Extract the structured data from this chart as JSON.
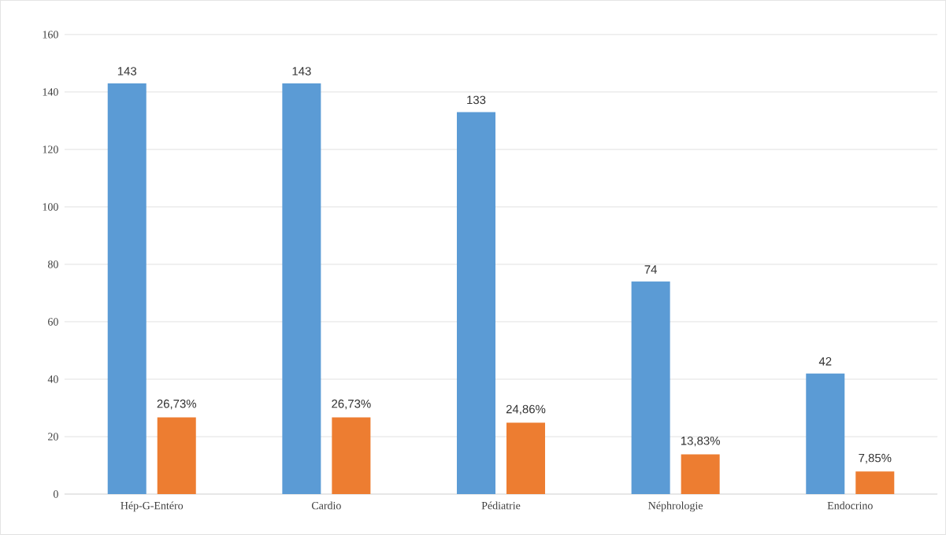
{
  "chart_data": {
    "type": "bar",
    "categories": [
      "Hép-G-Entéro",
      "Cardio",
      "Pédiatrie",
      "Néphrologie",
      "Endocrino"
    ],
    "series": [
      {
        "color": "#5b9bd5",
        "values": [
          143,
          143,
          133,
          74,
          42
        ],
        "value_labels": [
          "143",
          "143",
          "133",
          "74",
          "42"
        ]
      },
      {
        "color": "#ed7d31",
        "values": [
          26.73,
          26.73,
          24.86,
          13.83,
          7.85
        ],
        "value_labels": [
          "26,73%",
          "26,73%",
          "24,86%",
          "13,83%",
          "7,85%"
        ]
      }
    ],
    "ylim": [
      0,
      160
    ],
    "yticks": [
      0,
      20,
      40,
      60,
      80,
      100,
      120,
      140,
      160
    ],
    "grid": "y"
  }
}
